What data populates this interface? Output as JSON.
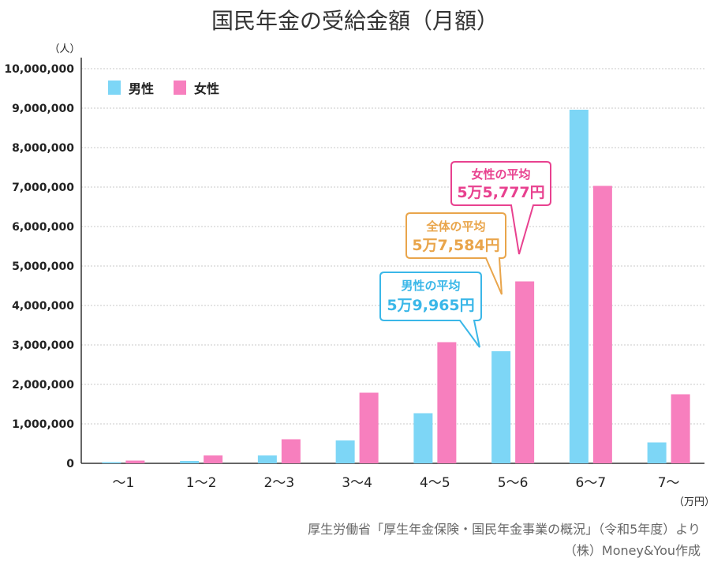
{
  "chart_data": {
    "type": "bar",
    "title": "国民年金の受給金額（月額）",
    "ylabel": "（人）",
    "xlabel": "（万円）",
    "categories": [
      "～1",
      "1～2",
      "2～3",
      "3～4",
      "4～5",
      "5～6",
      "6～7",
      "7～"
    ],
    "ylim": [
      0,
      10000000
    ],
    "yticks": [
      0,
      1000000,
      2000000,
      3000000,
      4000000,
      5000000,
      6000000,
      7000000,
      8000000,
      9000000,
      10000000
    ],
    "ytick_labels": [
      "0",
      "1,000,000",
      "2,000,000",
      "3,000,000",
      "4,000,000",
      "5,000,000",
      "6,000,000",
      "7,000,000",
      "8,000,000",
      "9,000,000",
      "10,000,000"
    ],
    "grid": true,
    "legend_position": "top-left",
    "series": [
      {
        "name": "男性",
        "color": "#7dd6f6",
        "values": [
          30000,
          60000,
          200000,
          580000,
          1270000,
          2840000,
          8960000,
          530000
        ]
      },
      {
        "name": "女性",
        "color": "#f77fbe",
        "values": [
          70000,
          200000,
          610000,
          1790000,
          3070000,
          4610000,
          7030000,
          1750000
        ]
      }
    ],
    "annotations": [
      {
        "title": "男性の平均",
        "value": "5万9,965円",
        "color": "#3ab7e8",
        "category": "5～6"
      },
      {
        "title": "全体の平均",
        "value": "5万7,584円",
        "color": "#e9a54b",
        "category": "5～6"
      },
      {
        "title": "女性の平均",
        "value": "5万5,777円",
        "color": "#e8418f",
        "category": "5～6"
      }
    ]
  },
  "source": {
    "line1": "厚生労働省「厚生年金保険・国民年金事業の概況」（令和5年度）より",
    "line2": "（株）Money&You作成"
  }
}
